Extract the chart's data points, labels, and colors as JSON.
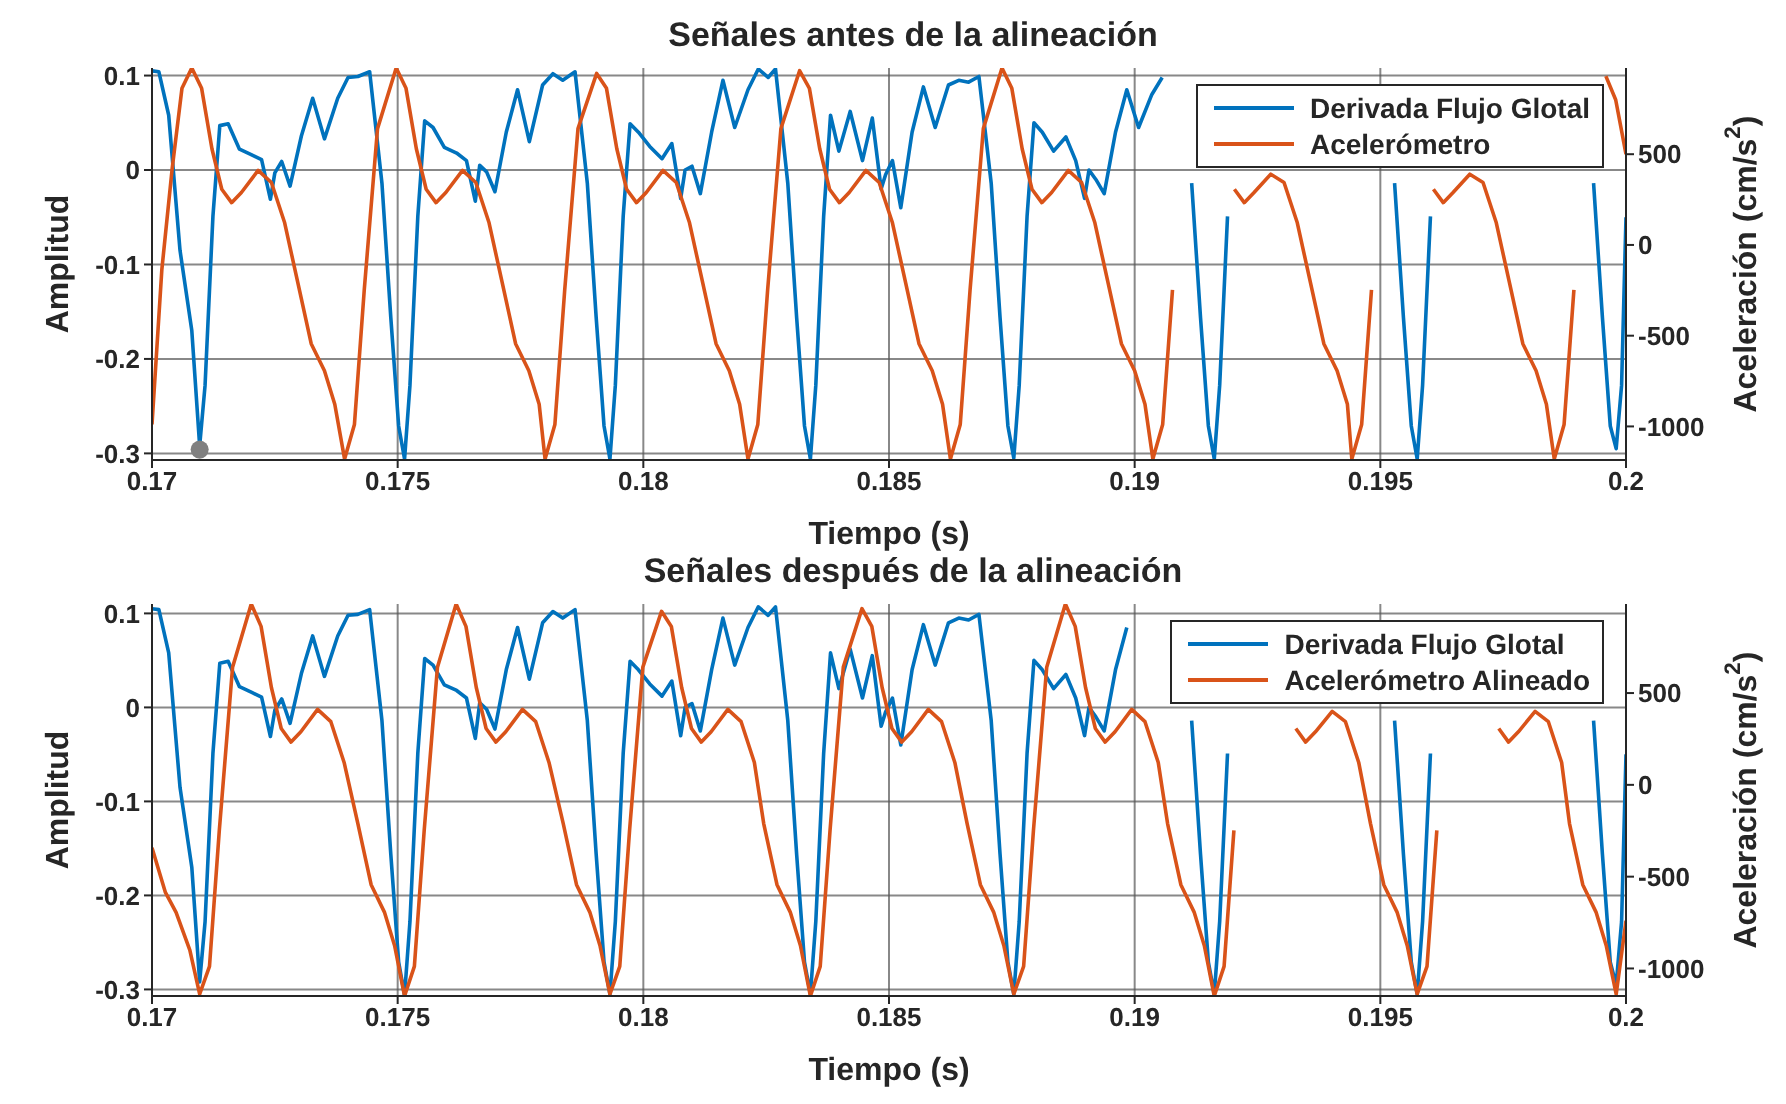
{
  "chart_data": [
    {
      "type": "line",
      "title": "Señales antes de la alineación",
      "xlabel": "Tiempo (s)",
      "ylabel": "Amplitud",
      "y2label": "Aceleración  (cm/s$^{2}$)",
      "xlim": [
        0.17,
        0.2
      ],
      "xticks": [
        0.17,
        0.175,
        0.18,
        0.185,
        0.19,
        0.195,
        0.2
      ],
      "ylim": [
        -0.307,
        0.108
      ],
      "yticks": [
        -0.3,
        -0.2,
        -0.1,
        0,
        0.1
      ],
      "y2lim": [
        -1185,
        975
      ],
      "y2ticks": [
        -1000,
        -500,
        0,
        500
      ],
      "grid": true,
      "legend": "top right",
      "series": [
        {
          "name": "Derivada Flujo Glotal",
          "color": "#0072bd",
          "x": [
            0.17,
            0.17014,
            0.17034,
            0.17057,
            0.17081,
            0.17097,
            0.17108,
            0.17124,
            0.17138,
            0.17155,
            0.17178,
            0.17203,
            0.17223,
            0.17241,
            0.1725,
            0.17264,
            0.17281,
            0.17304,
            0.17327,
            0.17351,
            0.17378,
            0.17399,
            0.17419,
            0.17443,
            0.17468,
            0.17486,
            0.17502,
            0.17514,
            0.17525,
            0.17541,
            0.17555,
            0.17572,
            0.17595,
            0.1762,
            0.1764,
            0.17658,
            0.17667,
            0.17681,
            0.17698,
            0.17721,
            0.17744,
            0.17768,
            0.17795,
            0.17816,
            0.17836,
            0.17861,
            0.17886,
            0.17904,
            0.1792,
            0.17932,
            0.17943,
            0.17959,
            0.17973,
            0.1799,
            0.18013,
            0.18038,
            0.18058,
            0.18076,
            0.18085,
            0.18099,
            0.18116,
            0.18139,
            0.18162,
            0.18186,
            0.18213,
            0.18234,
            0.18254,
            0.18269,
            0.18294,
            0.18312,
            0.18328,
            0.1834,
            0.18351,
            0.18367,
            0.18381,
            0.18398,
            0.18421,
            0.18446,
            0.18466,
            0.18484,
            0.18493,
            0.18507,
            0.18524,
            0.18547,
            0.1857,
            0.18594,
            0.18621,
            0.18642,
            0.18662,
            0.18683,
            0.18708,
            0.18726,
            0.18742,
            0.18754,
            0.18765,
            0.18781,
            0.18795,
            0.18812,
            0.18835,
            0.1886,
            0.1888,
            0.18898,
            0.18907,
            0.18921,
            0.18938,
            0.18961,
            0.18984,
            0.19008,
            0.19035,
            0.19056,
            0.19076,
            0.19116,
            0.19134,
            0.1915,
            0.19162,
            0.19173,
            0.19189,
            0.192,
            0.19529,
            0.19547,
            0.19563,
            0.19575,
            0.19586,
            0.19602,
            0.1961,
            0.19934,
            0.19952,
            0.19968,
            0.1998,
            0.19991,
            0.2
          ],
          "values": [
            0.105,
            0.104,
            0.058,
            -0.085,
            -0.17,
            -0.292,
            -0.228,
            -0.049,
            0.047,
            0.049,
            0.022,
            0.016,
            0.011,
            -0.031,
            -0.003,
            0.009,
            -0.017,
            0.036,
            0.076,
            0.033,
            0.076,
            0.098,
            0.099,
            0.104,
            -0.014,
            -0.156,
            -0.271,
            -0.306,
            -0.228,
            -0.049,
            0.052,
            0.045,
            0.024,
            0.018,
            0.01,
            -0.033,
            0.005,
            -0.002,
            -0.023,
            0.04,
            0.085,
            0.03,
            0.09,
            0.102,
            0.095,
            0.104,
            -0.014,
            -0.156,
            -0.271,
            -0.306,
            -0.228,
            -0.049,
            0.049,
            0.04,
            0.025,
            0.012,
            0.028,
            -0.03,
            0,
            0.004,
            -0.025,
            0.04,
            0.095,
            0.045,
            0.085,
            0.107,
            0.098,
            0.107,
            -0.014,
            -0.156,
            -0.271,
            -0.306,
            -0.228,
            -0.049,
            0.058,
            0.02,
            0.062,
            0.01,
            0.055,
            -0.02,
            -0.005,
            0.01,
            -0.04,
            0.04,
            0.088,
            0.045,
            0.09,
            0.095,
            0.093,
            0.099,
            -0.014,
            -0.156,
            -0.271,
            -0.305,
            -0.228,
            -0.049,
            0.05,
            0.04,
            0.02,
            0.035,
            0.01,
            -0.03,
            0,
            -0.01,
            -0.025,
            0.04,
            0.085,
            0.045,
            0.08,
            0.098,
            null,
            -0.014,
            -0.156,
            -0.271,
            -0.306,
            -0.228,
            -0.049,
            null,
            -0.014,
            -0.156,
            -0.271,
            -0.306,
            -0.228,
            -0.049,
            null,
            -0.014,
            -0.156,
            -0.271,
            -0.295,
            -0.228,
            -0.05
          ]
        },
        {
          "name": "Acelerómetro",
          "color": "#d95319",
          "axis": "y2",
          "x": [
            0.17,
            0.1702,
            0.17041,
            0.17061,
            0.17081,
            0.17101,
            0.17122,
            0.17142,
            0.17162,
            0.17182,
            0.17216,
            0.17243,
            0.1727,
            0.17297,
            0.17324,
            0.17351,
            0.17372,
            0.17392,
            0.17412,
            0.17432,
            0.17459,
            0.17497,
            0.17517,
            0.17538,
            0.17558,
            0.17578,
            0.17598,
            0.17632,
            0.17659,
            0.17686,
            0.17713,
            0.1774,
            0.17767,
            0.17788,
            0.178,
            0.1782,
            0.1784,
            0.17867,
            0.17905,
            0.17925,
            0.17946,
            0.17966,
            0.17986,
            0.18006,
            0.1804,
            0.18067,
            0.18094,
            0.18121,
            0.18148,
            0.18175,
            0.18196,
            0.18213,
            0.18233,
            0.18253,
            0.1828,
            0.18318,
            0.18338,
            0.18359,
            0.18379,
            0.18399,
            0.18419,
            0.18453,
            0.1848,
            0.18507,
            0.18534,
            0.18561,
            0.18588,
            0.18609,
            0.18625,
            0.18645,
            0.18665,
            0.18692,
            0.1873,
            0.1875,
            0.18771,
            0.18791,
            0.18811,
            0.18831,
            0.18865,
            0.18892,
            0.18919,
            0.18946,
            0.18973,
            0.19,
            0.19021,
            0.19037,
            0.19057,
            0.19077,
            0.19104,
            0.19203,
            0.19223,
            0.19243,
            0.19277,
            0.19304,
            0.19331,
            0.19358,
            0.19385,
            0.19412,
            0.19433,
            0.19442,
            0.19462,
            0.19482,
            0.19509,
            0.19608,
            0.19628,
            0.19648,
            0.19682,
            0.19709,
            0.19736,
            0.19763,
            0.1979,
            0.19817,
            0.19838,
            0.19854,
            0.19874,
            0.19894,
            0.19921,
            0.19959,
            0.19979,
            0.2
          ],
          "values": [
            -989,
            -137,
            419,
            863,
            975,
            863,
            530,
            307,
            233,
            289,
            411,
            344,
            122,
            -211,
            -544,
            -693,
            -878,
            -1180,
            -989,
            -248,
            641,
            975,
            863,
            530,
            307,
            233,
            289,
            411,
            344,
            122,
            -211,
            -544,
            -693,
            -878,
            -1180,
            -989,
            -248,
            641,
            945,
            863,
            530,
            307,
            233,
            289,
            411,
            344,
            122,
            -211,
            -544,
            -693,
            -878,
            -1180,
            -989,
            -248,
            641,
            960,
            863,
            530,
            307,
            233,
            289,
            411,
            344,
            122,
            -211,
            -544,
            -693,
            -878,
            -1180,
            -989,
            -248,
            641,
            975,
            863,
            530,
            307,
            233,
            289,
            411,
            344,
            122,
            -211,
            -544,
            -693,
            -878,
            -1180,
            -989,
            -248,
            null,
            307,
            233,
            289,
            390,
            344,
            122,
            -211,
            -544,
            -693,
            -878,
            -1180,
            -989,
            -248,
            null,
            307,
            233,
            289,
            390,
            344,
            122,
            -211,
            -544,
            -693,
            -878,
            -1180,
            -989,
            -248,
            null,
            930,
            800,
            500
          ]
        },
        {
          "type": "scatter",
          "color": "#808080",
          "marker": "circle",
          "x": [
            0.17097
          ],
          "values": [
            -0.296
          ]
        }
      ]
    },
    {
      "type": "line",
      "title": "Señales después de la alineación",
      "xlabel": "Tiempo (s)",
      "ylabel": "Amplitud",
      "y2label": "Aceleración  (cm/s$^{2}$)",
      "xlim": [
        0.17,
        0.2
      ],
      "xticks": [
        0.17,
        0.175,
        0.18,
        0.185,
        0.19,
        0.195,
        0.2
      ],
      "ylim": [
        -0.307,
        0.11
      ],
      "yticks": [
        -0.3,
        -0.2,
        -0.1,
        0,
        0.1
      ],
      "y2lim": [
        -1150,
        985
      ],
      "y2ticks": [
        -1000,
        -500,
        0,
        500
      ],
      "grid": true,
      "legend": "top right",
      "series": [
        {
          "name": "Derivada Flujo Glotal",
          "color": "#0072bd",
          "x": [
            0.17,
            0.17014,
            0.17034,
            0.17057,
            0.17081,
            0.17097,
            0.17108,
            0.17124,
            0.17138,
            0.17155,
            0.17178,
            0.17203,
            0.17223,
            0.17241,
            0.1725,
            0.17264,
            0.17281,
            0.17304,
            0.17327,
            0.17351,
            0.17378,
            0.17399,
            0.17419,
            0.17443,
            0.17468,
            0.17486,
            0.17502,
            0.17514,
            0.17525,
            0.17541,
            0.17555,
            0.17572,
            0.17595,
            0.1762,
            0.1764,
            0.17658,
            0.17667,
            0.17681,
            0.17698,
            0.17721,
            0.17744,
            0.17768,
            0.17795,
            0.17816,
            0.17836,
            0.17861,
            0.17886,
            0.17904,
            0.1792,
            0.17932,
            0.17943,
            0.17959,
            0.17973,
            0.1799,
            0.18013,
            0.18038,
            0.18058,
            0.18076,
            0.18085,
            0.18099,
            0.18116,
            0.18139,
            0.18162,
            0.18186,
            0.18213,
            0.18234,
            0.18254,
            0.18269,
            0.18294,
            0.18312,
            0.18328,
            0.1834,
            0.18351,
            0.18367,
            0.18381,
            0.18398,
            0.18421,
            0.18446,
            0.18466,
            0.18484,
            0.18493,
            0.18507,
            0.18524,
            0.18547,
            0.1857,
            0.18594,
            0.18621,
            0.18642,
            0.18662,
            0.18683,
            0.18708,
            0.18726,
            0.18742,
            0.18754,
            0.18765,
            0.18781,
            0.18795,
            0.18812,
            0.18835,
            0.1886,
            0.1888,
            0.18898,
            0.18907,
            0.18921,
            0.18938,
            0.18961,
            0.18984,
            0.19,
            0.19116,
            0.19134,
            0.1915,
            0.19162,
            0.19173,
            0.19189,
            0.192,
            0.19529,
            0.19547,
            0.19563,
            0.19575,
            0.19586,
            0.19602,
            0.1961,
            0.19934,
            0.19952,
            0.19968,
            0.1998,
            0.19991,
            0.2
          ],
          "values": [
            0.105,
            0.104,
            0.058,
            -0.085,
            -0.17,
            -0.292,
            -0.228,
            -0.049,
            0.047,
            0.049,
            0.022,
            0.016,
            0.011,
            -0.031,
            -0.003,
            0.009,
            -0.017,
            0.036,
            0.076,
            0.033,
            0.076,
            0.098,
            0.099,
            0.104,
            -0.014,
            -0.156,
            -0.271,
            -0.306,
            -0.228,
            -0.049,
            0.052,
            0.045,
            0.024,
            0.018,
            0.01,
            -0.033,
            0.005,
            -0.002,
            -0.023,
            0.04,
            0.085,
            0.03,
            0.09,
            0.102,
            0.095,
            0.104,
            -0.014,
            -0.156,
            -0.271,
            -0.305,
            -0.228,
            -0.049,
            0.049,
            0.04,
            0.025,
            0.012,
            0.028,
            -0.03,
            0,
            0.004,
            -0.025,
            0.04,
            0.095,
            0.045,
            0.085,
            0.107,
            0.098,
            0.107,
            -0.014,
            -0.156,
            -0.271,
            -0.305,
            -0.228,
            -0.049,
            0.058,
            0.02,
            0.062,
            0.01,
            0.055,
            -0.02,
            -0.005,
            0.01,
            -0.04,
            0.04,
            0.088,
            0.045,
            0.09,
            0.095,
            0.093,
            0.099,
            -0.014,
            -0.156,
            -0.271,
            -0.305,
            -0.228,
            -0.049,
            0.05,
            0.04,
            0.02,
            0.035,
            0.01,
            -0.03,
            0,
            -0.01,
            -0.025,
            0.04,
            0.085,
            null,
            -0.014,
            -0.156,
            -0.271,
            -0.305,
            -0.228,
            -0.049,
            null,
            -0.014,
            -0.156,
            -0.271,
            -0.305,
            -0.228,
            -0.049,
            null,
            -0.014,
            -0.156,
            -0.271,
            -0.295,
            -0.228,
            -0.05
          ]
        },
        {
          "name": "Acelerómetro Alineado",
          "color": "#d95319",
          "axis": "y2",
          "x": [
            0.17,
            0.17027,
            0.17049,
            0.17077,
            0.17097,
            0.17117,
            0.17137,
            0.17164,
            0.17202,
            0.17222,
            0.17243,
            0.17263,
            0.17283,
            0.17303,
            0.17337,
            0.17364,
            0.17391,
            0.17419,
            0.17446,
            0.17473,
            0.17494,
            0.17514,
            0.17534,
            0.17554,
            0.17581,
            0.17619,
            0.17639,
            0.1766,
            0.1768,
            0.177,
            0.1772,
            0.17754,
            0.17781,
            0.17808,
            0.17837,
            0.17864,
            0.17891,
            0.17912,
            0.17932,
            0.17952,
            0.17972,
            0.17999,
            0.18037,
            0.18057,
            0.18078,
            0.18098,
            0.18118,
            0.18138,
            0.18172,
            0.18199,
            0.18226,
            0.18245,
            0.18272,
            0.18299,
            0.1832,
            0.1834,
            0.1836,
            0.1838,
            0.18407,
            0.18445,
            0.18465,
            0.18486,
            0.18506,
            0.18526,
            0.18546,
            0.1858,
            0.18607,
            0.18634,
            0.18659,
            0.18686,
            0.18713,
            0.18734,
            0.18754,
            0.18774,
            0.18794,
            0.18821,
            0.18859,
            0.18879,
            0.189,
            0.1892,
            0.1894,
            0.1896,
            0.18994,
            0.19021,
            0.19048,
            0.19067,
            0.19094,
            0.19121,
            0.19142,
            0.19162,
            0.19182,
            0.19202,
            0.19229,
            0.19328,
            0.19348,
            0.19368,
            0.19402,
            0.19429,
            0.19456,
            0.1948,
            0.19507,
            0.19534,
            0.19555,
            0.19575,
            0.19595,
            0.19615,
            0.19642,
            0.19741,
            0.19761,
            0.19781,
            0.19815,
            0.19842,
            0.19869,
            0.19885,
            0.19912,
            0.19939,
            0.1996,
            0.1998,
            0.2
          ],
          "values": [
            -342,
            -584,
            -695,
            -900,
            -1140,
            -989,
            -248,
            641,
            985,
            863,
            530,
            307,
            233,
            289,
            411,
            344,
            122,
            -211,
            -544,
            -693,
            -878,
            -1150,
            -989,
            -248,
            641,
            985,
            863,
            530,
            307,
            233,
            289,
            411,
            344,
            122,
            -211,
            -544,
            -693,
            -878,
            -1140,
            -989,
            -248,
            641,
            945,
            863,
            530,
            307,
            233,
            289,
            411,
            344,
            122,
            -211,
            -544,
            -693,
            -878,
            -1150,
            -989,
            -248,
            641,
            960,
            863,
            530,
            307,
            233,
            289,
            411,
            344,
            122,
            -211,
            -544,
            -693,
            -878,
            -1140,
            -989,
            -248,
            641,
            985,
            863,
            530,
            307,
            233,
            289,
            411,
            344,
            122,
            -211,
            -544,
            -693,
            -878,
            -1150,
            -989,
            -248,
            null,
            307,
            233,
            289,
            400,
            344,
            122,
            -211,
            -544,
            -693,
            -878,
            -1140,
            -989,
            -248,
            null,
            307,
            233,
            289,
            400,
            344,
            122,
            -211,
            -544,
            -693,
            -878,
            -1140,
            -740
          ]
        }
      ]
    }
  ]
}
